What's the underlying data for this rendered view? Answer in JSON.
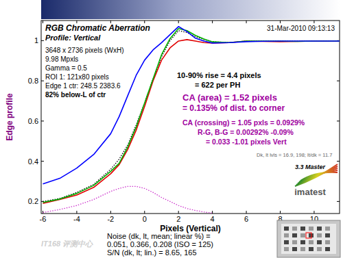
{
  "chart_data": {
    "type": "line",
    "title": "RGB Chromatic Aberration",
    "subtitle": "Profile: Vertical",
    "x_label": "Pixels (Vertical)",
    "y_label": "Edge profile",
    "x": [
      -6,
      -5,
      -4,
      -3,
      -2,
      -1.5,
      -1,
      -0.5,
      0,
      0.5,
      1,
      1.5,
      2,
      2.5,
      3,
      3.5,
      4,
      5,
      6,
      7,
      8,
      9,
      10,
      11,
      11.5
    ],
    "series": [
      {
        "color": "#cc33cc",
        "line_style": "dotted",
        "values": [
          0.145,
          0.16,
          0.18,
          0.21,
          0.25,
          0.265,
          0.275,
          0.275,
          0.265,
          0.245,
          0.22,
          0.2,
          0.18,
          0.165,
          0.155,
          0.148,
          0.142,
          null,
          null,
          null,
          null,
          null,
          null,
          null,
          null
        ]
      },
      {
        "color": "#000000",
        "line_style": "dotted",
        "values": [
          0.2,
          0.215,
          0.245,
          0.285,
          0.36,
          0.41,
          0.48,
          0.58,
          0.69,
          0.81,
          0.92,
          1.0,
          1.05,
          1.04,
          1.02,
          1.005,
          0.995,
          0.99,
          0.998,
          0.998,
          0.998,
          0.997,
          0.998,
          0.998,
          0.998
        ]
      },
      {
        "color": "#e00000",
        "line_style": "solid",
        "values": [
          0.19,
          0.21,
          0.232,
          0.27,
          0.338,
          0.383,
          0.458,
          0.554,
          0.673,
          0.8,
          0.903,
          0.964,
          0.998,
          1.005,
          0.998,
          0.99,
          0.988,
          0.99,
          0.998,
          0.996,
          0.995,
          0.996,
          0.998,
          0.997,
          0.997
        ]
      },
      {
        "color": "#00b000",
        "line_style": "solid",
        "values": [
          0.195,
          0.212,
          0.24,
          0.28,
          0.35,
          0.39,
          0.47,
          0.57,
          0.69,
          0.81,
          0.93,
          1.01,
          1.06,
          1.05,
          1.026,
          1.008,
          0.994,
          0.99,
          0.998,
          0.998,
          0.998,
          0.996,
          0.998,
          0.998,
          0.998
        ]
      },
      {
        "color": "#0000ff",
        "line_style": "solid",
        "values": [
          0.287,
          0.315,
          0.366,
          0.434,
          0.537,
          0.622,
          0.725,
          0.827,
          0.903,
          0.954,
          0.99,
          1.03,
          1.07,
          1.045,
          1.012,
          0.998,
          0.988,
          0.99,
          0.995,
          0.997,
          0.998,
          0.998,
          0.998,
          0.998,
          0.998
        ]
      }
    ],
    "xlim": [
      -6.1,
      11.5
    ],
    "ylim": [
      0.14,
      1.1
    ],
    "xticks": [
      -6,
      -4,
      -2,
      0,
      2,
      4,
      6,
      8,
      10
    ],
    "yticks": [
      0.2,
      0.4,
      0.6,
      0.8,
      1
    ],
    "grid": false,
    "annotations": {
      "date": "31-Mar-2010 09:13:13",
      "info": [
        "3648 x 2736 pixels (WxH)",
        "9.98 Mpxls",
        "Gamma = 0.5",
        "ROI 1: 121x80 pixels",
        "Edge 1 ctr: 248.5  2383.6",
        "82% below-L of ctr"
      ],
      "rise": [
        "10-90% rise = 4.4 pixels",
        "= 622 per PH"
      ],
      "ca_area": [
        "CA (area) = 1.52 pixels",
        "= 0.135% of dist. to corner"
      ],
      "ca_crossing": [
        "CA (crossing) = 1.05 pxls = 0.0929%",
        "R-G, B-G = 0.00292%  -0.09%",
        "= 0.033  -1.01 pixels Vert"
      ],
      "levels": "Dk, lt lvls = 16.9, 198;  lt/dk = 11.7",
      "version": "3.3  Master",
      "logo": "imatest",
      "noise": [
        "Noise (dk, lt, mean; linear %) =",
        "0.051, 0.366, 0.208  (ISO = 125)",
        "S/N (dk, lt; lin.) = 8.65, 165"
      ],
      "watermark": "IT168 评测中心"
    }
  }
}
